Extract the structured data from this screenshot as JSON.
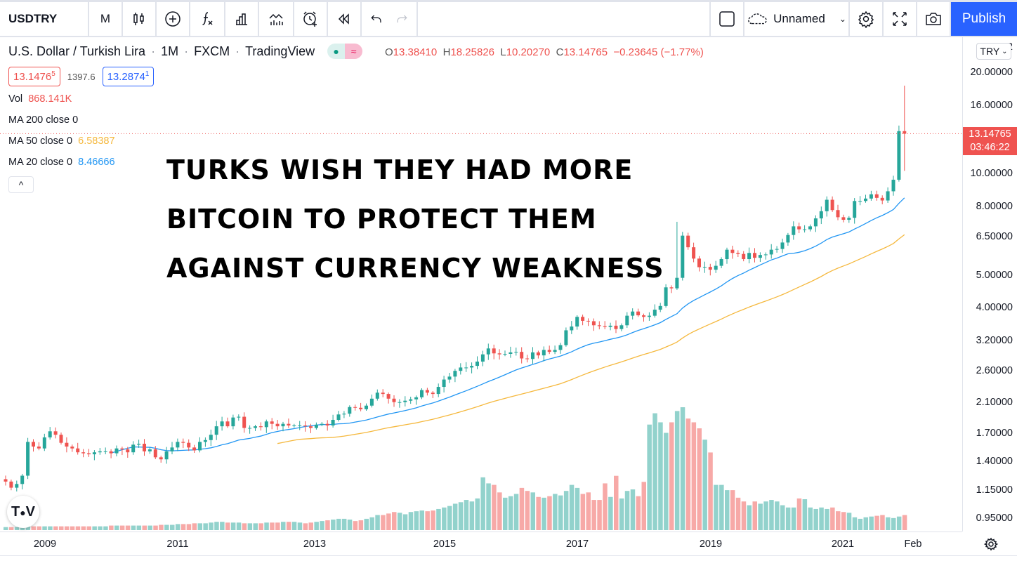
{
  "toolbar": {
    "symbol": "USDTRY",
    "interval": "M",
    "layout_name": "Unnamed",
    "publish": "Publish"
  },
  "legend": {
    "title": "U.S. Dollar / Turkish Lira",
    "sep": "·",
    "interval": "1M",
    "exchange": "FXCM",
    "source": "TradingView",
    "pill_wave": "≈",
    "ohlc": {
      "o_label": "O",
      "o": "13.38410",
      "h_label": "H",
      "h": "18.25826",
      "l_label": "L",
      "l": "10.20270",
      "c_label": "C",
      "c": "13.14765",
      "chg": "−0.23645 (−1.77%)"
    },
    "bid": "13.1476",
    "bid_sup": "5",
    "spread": "1397.6",
    "ask": "13.2874",
    "ask_sup": "1"
  },
  "indicators": [
    {
      "label": "Vol",
      "value": "868.141K",
      "color": "#ef5350"
    },
    {
      "label": "MA 200 close 0",
      "value": "",
      "color": "#131722"
    },
    {
      "label": "MA 50 close 0",
      "value": "6.58387",
      "color": "#f5b83d"
    },
    {
      "label": "MA 20 close 0",
      "value": "8.46666",
      "color": "#2196f3"
    }
  ],
  "collapse_glyph": "^",
  "headline": [
    "TURKS WISH THEY HAD MORE",
    "BITCOIN TO PROTECT THEM",
    "AGAINST CURRENCY WEAKNESS"
  ],
  "currency_select": "TRY",
  "last_price": {
    "price": "13.14765",
    "countdown": "03:46:22"
  },
  "logo_text": "TV",
  "colors": {
    "up": "#26a69a",
    "down": "#ef5350",
    "vol_up": "#92d2cc",
    "vol_down": "#f7a9a7",
    "ma20": "#2196f3",
    "ma50": "#f5b83d",
    "accent": "#2962ff"
  },
  "chart_data": {
    "type": "candlestick",
    "title": "U.S. Dollar / Turkish Lira · 1M · FXCM",
    "scale": "log",
    "start": "2008-06",
    "interval": "1M",
    "y_ticks": [
      "20.00000",
      "16.00000",
      "10.00000",
      "8.00000",
      "6.50000",
      "5.00000",
      "4.00000",
      "3.20000",
      "2.60000",
      "2.10000",
      "1.70000",
      "1.40000",
      "1.15000",
      "0.95000"
    ],
    "y_partial_top": "2",
    "x_ticks": [
      "2009",
      "2011",
      "2013",
      "2015",
      "2017",
      "2019",
      "2021",
      "Feb"
    ],
    "closes": [
      1.22,
      1.17,
      1.2,
      1.27,
      1.6,
      1.55,
      1.53,
      1.65,
      1.72,
      1.68,
      1.59,
      1.55,
      1.53,
      1.49,
      1.48,
      1.47,
      1.49,
      1.5,
      1.5,
      1.48,
      1.53,
      1.52,
      1.49,
      1.57,
      1.58,
      1.5,
      1.52,
      1.44,
      1.42,
      1.5,
      1.54,
      1.6,
      1.59,
      1.54,
      1.51,
      1.6,
      1.62,
      1.68,
      1.78,
      1.84,
      1.78,
      1.89,
      1.9,
      1.76,
      1.76,
      1.78,
      1.77,
      1.84,
      1.81,
      1.78,
      1.81,
      1.79,
      1.79,
      1.79,
      1.78,
      1.76,
      1.8,
      1.81,
      1.79,
      1.86,
      1.93,
      1.94,
      2.03,
      2.02,
      2.0,
      2.05,
      2.15,
      2.24,
      2.22,
      2.15,
      2.1,
      2.1,
      2.12,
      2.14,
      2.17,
      2.28,
      2.24,
      2.22,
      2.33,
      2.45,
      2.5,
      2.6,
      2.66,
      2.66,
      2.69,
      2.77,
      2.91,
      3.03,
      2.93,
      2.91,
      2.92,
      2.95,
      2.96,
      2.83,
      2.82,
      2.95,
      2.89,
      3.0,
      2.96,
      3.0,
      3.1,
      3.43,
      3.52,
      3.76,
      3.66,
      3.65,
      3.55,
      3.53,
      3.51,
      3.54,
      3.46,
      3.55,
      3.79,
      3.9,
      3.8,
      3.76,
      3.79,
      3.95,
      4.05,
      4.6,
      4.57,
      4.91,
      6.55,
      6.05,
      5.6,
      5.28,
      5.29,
      5.19,
      5.33,
      5.58,
      5.95,
      5.82,
      5.78,
      5.58,
      5.82,
      5.63,
      5.74,
      5.76,
      5.95,
      5.98,
      6.25,
      6.58,
      6.98,
      6.84,
      6.84,
      6.98,
      7.37,
      7.74,
      8.37,
      7.8,
      7.43,
      7.3,
      7.4,
      8.3,
      8.3,
      8.44,
      8.69,
      8.48,
      8.33,
      8.87,
      9.6,
      13.38,
      13.15
    ],
    "last_high": 18.26,
    "last_low": 10.2,
    "volume_k": [
      40,
      40,
      40,
      40,
      50,
      50,
      50,
      50,
      50,
      50,
      50,
      50,
      50,
      50,
      50,
      50,
      50,
      50,
      50,
      60,
      60,
      60,
      60,
      60,
      60,
      60,
      60,
      60,
      70,
      70,
      70,
      80,
      80,
      80,
      90,
      90,
      90,
      100,
      110,
      110,
      100,
      100,
      100,
      90,
      90,
      90,
      90,
      100,
      100,
      100,
      110,
      110,
      110,
      100,
      90,
      100,
      110,
      120,
      130,
      140,
      150,
      150,
      140,
      120,
      130,
      150,
      170,
      200,
      200,
      220,
      240,
      230,
      210,
      240,
      250,
      260,
      250,
      260,
      280,
      300,
      320,
      350,
      370,
      400,
      380,
      420,
      700,
      620,
      600,
      500,
      430,
      450,
      480,
      560,
      520,
      500,
      440,
      430,
      450,
      480,
      460,
      520,
      600,
      560,
      480,
      500,
      400,
      400,
      620,
      440,
      720,
      420,
      520,
      540,
      450,
      640,
      1400,
      1550,
      1430,
      1290,
      1430,
      1580,
      1630,
      1480,
      1430,
      1350,
      1200,
      1030,
      600,
      600,
      530,
      530,
      430,
      380,
      330,
      380,
      350,
      380,
      400,
      380,
      330,
      300,
      300,
      420,
      410,
      300,
      280,
      300,
      280,
      300,
      250,
      240,
      230,
      170,
      150,
      170,
      180,
      190,
      200,
      170,
      160,
      180,
      200,
      230,
      170,
      210,
      230,
      220,
      180
    ],
    "series": [
      {
        "name": "MA 20",
        "period": 20
      },
      {
        "name": "MA 50",
        "period": 50
      }
    ]
  }
}
